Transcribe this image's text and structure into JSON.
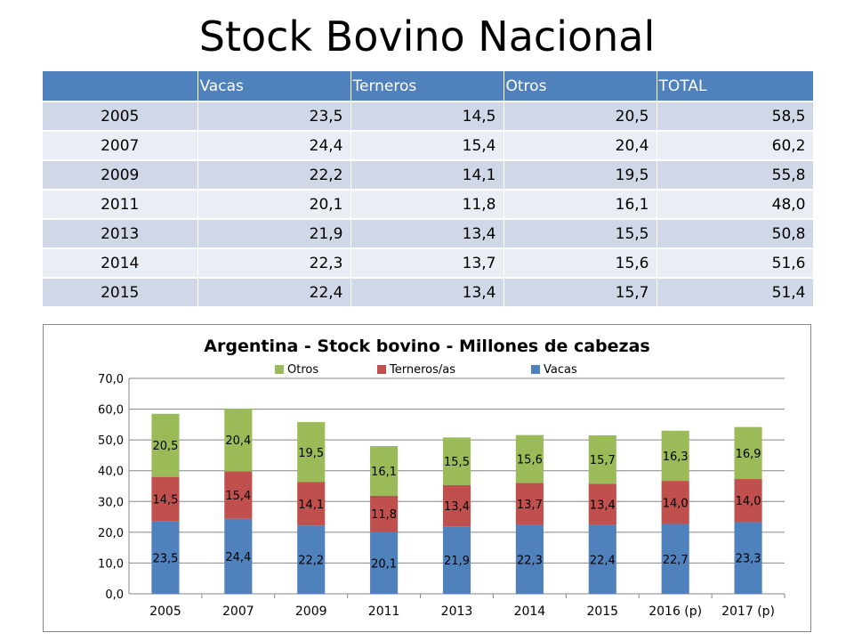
{
  "page": {
    "title": "Stock Bovino Nacional"
  },
  "table": {
    "headers": [
      "",
      "Vacas",
      "Terneros",
      "Otros",
      "TOTAL"
    ],
    "rows": [
      [
        "2005",
        "23,5",
        "14,5",
        "20,5",
        "58,5"
      ],
      [
        "2007",
        "24,4",
        "15,4",
        "20,4",
        "60,2"
      ],
      [
        "2009",
        "22,2",
        "14,1",
        "19,5",
        "55,8"
      ],
      [
        "2011",
        "20,1",
        "11,8",
        "16,1",
        "48,0"
      ],
      [
        "2013",
        "21,9",
        "13,4",
        "15,5",
        "50,8"
      ],
      [
        "2014",
        "22,3",
        "13,7",
        "15,6",
        "51,6"
      ],
      [
        "2015",
        "22,4",
        "13,4",
        "15,7",
        "51,4"
      ]
    ]
  },
  "chart_data": {
    "type": "bar",
    "stacked": true,
    "title": "Argentina - Stock bovino - Millones de cabezas",
    "xlabel": "",
    "ylabel": "",
    "categories": [
      "2005",
      "2007",
      "2009",
      "2011",
      "2013",
      "2014",
      "2015",
      "2016 (p)",
      "2017 (p)"
    ],
    "series": [
      {
        "name": "Vacas",
        "color": "#4f81bd",
        "values": [
          23.5,
          24.4,
          22.2,
          20.1,
          21.9,
          22.3,
          22.4,
          22.7,
          23.3
        ],
        "labels": [
          "23,5",
          "24,4",
          "22,2",
          "20,1",
          "21,9",
          "22,3",
          "22,4",
          "22,7",
          "23,3"
        ]
      },
      {
        "name": "Terneros/as",
        "color": "#c0504d",
        "values": [
          14.5,
          15.4,
          14.1,
          11.8,
          13.4,
          13.7,
          13.4,
          14.0,
          14.0
        ],
        "labels": [
          "14,5",
          "15,4",
          "14,1",
          "11,8",
          "13,4",
          "13,7",
          "13,4",
          "14,0",
          "14,0"
        ]
      },
      {
        "name": "Otros",
        "color": "#9bbb59",
        "values": [
          20.5,
          20.4,
          19.5,
          16.1,
          15.5,
          15.6,
          15.7,
          16.3,
          16.9
        ],
        "labels": [
          "20,5",
          "20,4",
          "19,5",
          "16,1",
          "15,5",
          "15,6",
          "15,7",
          "16,3",
          "16,9"
        ]
      }
    ],
    "legend_order": [
      "Otros",
      "Terneros/as",
      "Vacas"
    ],
    "legend_position": "top",
    "ylim": [
      0,
      70
    ],
    "yticks": [
      "0,0",
      "10,0",
      "20,0",
      "30,0",
      "40,0",
      "50,0",
      "60,0",
      "70,0"
    ],
    "grid": true
  }
}
